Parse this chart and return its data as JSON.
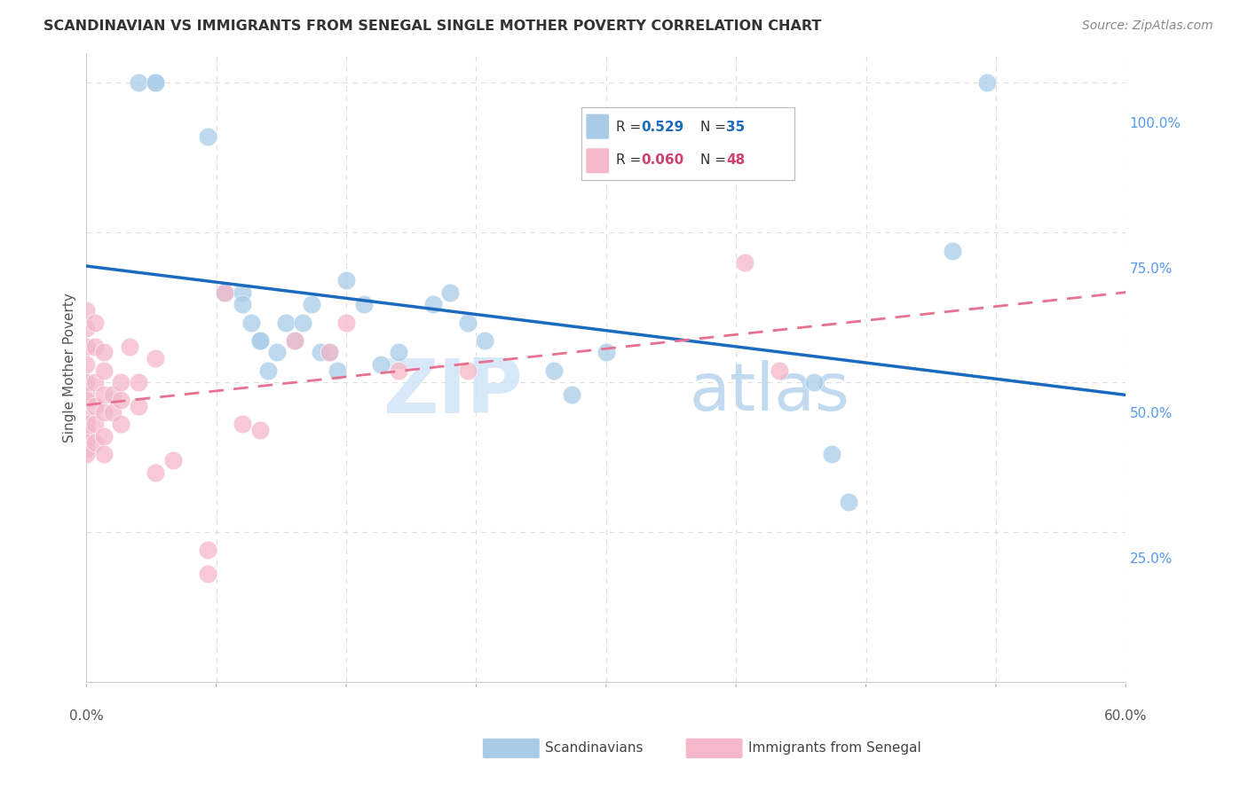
{
  "title": "SCANDINAVIAN VS IMMIGRANTS FROM SENEGAL SINGLE MOTHER POVERTY CORRELATION CHART",
  "source": "Source: ZipAtlas.com",
  "ylabel_left": "Single Mother Poverty",
  "legend_blue_r": "R = 0.529",
  "legend_blue_n": "N = 35",
  "legend_pink_r": "R = 0.060",
  "legend_pink_n": "N = 48",
  "watermark_zip": "ZIP",
  "watermark_atlas": "atlas",
  "legend_label_blue": "Scandinavians",
  "legend_label_pink": "Immigrants from Senegal",
  "blue_scatter_x": [
    0.03,
    0.04,
    0.04,
    0.07,
    0.08,
    0.09,
    0.09,
    0.095,
    0.1,
    0.1,
    0.105,
    0.11,
    0.115,
    0.12,
    0.125,
    0.13,
    0.135,
    0.14,
    0.145,
    0.15,
    0.16,
    0.17,
    0.18,
    0.2,
    0.21,
    0.22,
    0.23,
    0.27,
    0.28,
    0.3,
    0.42,
    0.43,
    0.44,
    0.5,
    0.52
  ],
  "blue_scatter_y": [
    1.0,
    1.0,
    1.0,
    0.91,
    0.65,
    0.65,
    0.63,
    0.6,
    0.57,
    0.57,
    0.52,
    0.55,
    0.6,
    0.57,
    0.6,
    0.63,
    0.55,
    0.55,
    0.52,
    0.67,
    0.63,
    0.53,
    0.55,
    0.63,
    0.65,
    0.6,
    0.57,
    0.52,
    0.48,
    0.55,
    0.5,
    0.38,
    0.3,
    0.72,
    1.0
  ],
  "pink_scatter_x": [
    0.0,
    0.0,
    0.0,
    0.0,
    0.0,
    0.0,
    0.0,
    0.0,
    0.0,
    0.0,
    0.0,
    0.0,
    0.0,
    0.005,
    0.005,
    0.005,
    0.005,
    0.005,
    0.005,
    0.01,
    0.01,
    0.01,
    0.01,
    0.01,
    0.01,
    0.015,
    0.015,
    0.02,
    0.02,
    0.02,
    0.025,
    0.03,
    0.03,
    0.04,
    0.04,
    0.05,
    0.07,
    0.07,
    0.08,
    0.09,
    0.1,
    0.12,
    0.14,
    0.15,
    0.18,
    0.22,
    0.38,
    0.4
  ],
  "pink_scatter_y": [
    0.62,
    0.59,
    0.56,
    0.53,
    0.5,
    0.48,
    0.47,
    0.44,
    0.43,
    0.42,
    0.4,
    0.39,
    0.38,
    0.6,
    0.56,
    0.5,
    0.46,
    0.43,
    0.4,
    0.55,
    0.52,
    0.48,
    0.45,
    0.41,
    0.38,
    0.48,
    0.45,
    0.5,
    0.47,
    0.43,
    0.56,
    0.5,
    0.46,
    0.54,
    0.35,
    0.37,
    0.22,
    0.18,
    0.65,
    0.43,
    0.42,
    0.57,
    0.55,
    0.6,
    0.52,
    0.52,
    0.7,
    0.52
  ],
  "blue_color": "#a8cce8",
  "pink_color": "#f4b8c8",
  "blue_line_color": "#1a6bbf",
  "pink_line_color": "#e87090",
  "background_color": "#ffffff",
  "grid_color": "#dddddd",
  "xlim": [
    0.0,
    0.6
  ],
  "ylim": [
    0.0,
    1.05
  ],
  "right_labels": [
    [
      1.0,
      "100.0%"
    ],
    [
      0.75,
      "75.0%"
    ],
    [
      0.5,
      "50.0%"
    ],
    [
      0.25,
      "25.0%"
    ]
  ],
  "x_tick_labels": [
    "0.0%",
    "60.0%"
  ],
  "right_label_color": "#5599ee"
}
